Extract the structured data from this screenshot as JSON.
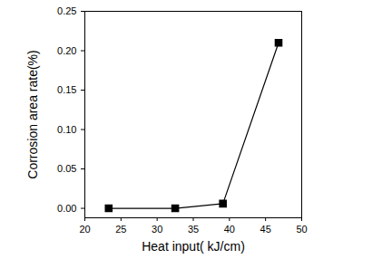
{
  "chart_data": {
    "type": "line",
    "x_label": "Heat input( kJ/cm)",
    "y_label": "Corrosion area rate(%)",
    "x": [
      23.3,
      32.5,
      39.1,
      46.8
    ],
    "values": [
      0.0,
      0.0,
      0.006,
      0.21
    ],
    "color": "#000000",
    "marker": "square",
    "line_style": "solid",
    "xlim": [
      20,
      50
    ],
    "xticks": [
      20,
      25,
      30,
      35,
      40,
      45,
      50
    ],
    "ylim": [
      -0.012,
      0.25
    ],
    "yticks": [
      {
        "value": 0,
        "label": "0.00"
      },
      {
        "value": 0.05,
        "label": "0.05"
      },
      {
        "value": 0.1,
        "label": "0.10"
      },
      {
        "value": 0.15,
        "label": "0.15"
      },
      {
        "value": 0.2,
        "label": "0.20"
      },
      {
        "value": 0.25,
        "label": "0.25"
      }
    ],
    "grid": false
  }
}
